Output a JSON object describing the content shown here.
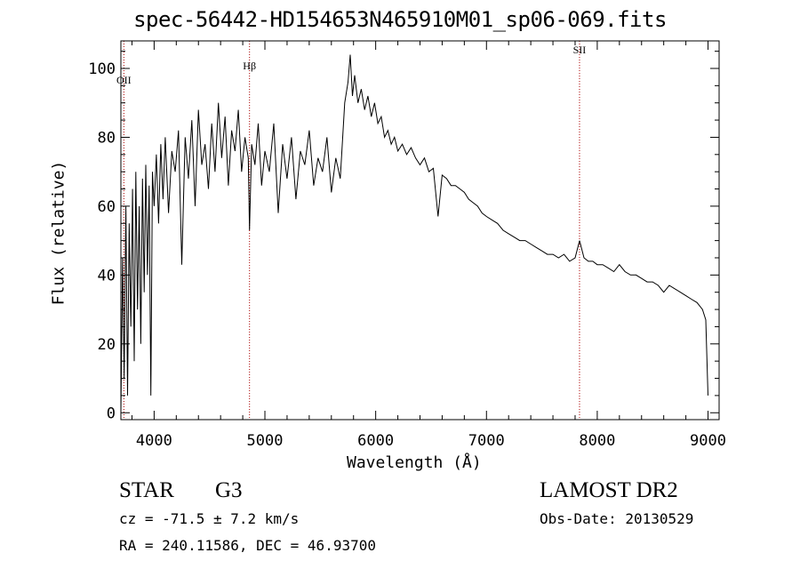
{
  "chart_data": {
    "type": "line",
    "title": "spec-56442-HD154653N465910M01_sp06-069.fits",
    "xlabel": "Wavelength (Å)",
    "ylabel": "Flux (relative)",
    "xlim": [
      3700,
      9100
    ],
    "ylim": [
      -2,
      108
    ],
    "x_ticks": [
      4000,
      5000,
      6000,
      7000,
      8000,
      9000
    ],
    "y_ticks": [
      0,
      20,
      40,
      60,
      80,
      100
    ],
    "x_ticklabels": [
      "4000",
      "5000",
      "6000",
      "7000",
      "8000",
      "9000"
    ],
    "y_ticklabels": [
      "0",
      "20",
      "40",
      "60",
      "80",
      "100"
    ],
    "grid": false,
    "line_markers": [
      {
        "label": "OII",
        "x": 3727,
        "color": "#aa0000"
      },
      {
        "label": "Hβ",
        "x": 4861,
        "color": "#aa0000"
      },
      {
        "label": "SII",
        "x": 7840,
        "color": "#aa0000"
      }
    ],
    "series": [
      {
        "x": [
          3700,
          3715,
          3730,
          3745,
          3760,
          3775,
          3790,
          3805,
          3820,
          3835,
          3850,
          3865,
          3880,
          3895,
          3910,
          3925,
          3940,
          3955,
          3970,
          3985,
          4000,
          4020,
          4040,
          4060,
          4080,
          4100,
          4130,
          4160,
          4190,
          4220,
          4250,
          4280,
          4310,
          4340,
          4370,
          4400,
          4430,
          4460,
          4490,
          4520,
          4550,
          4580,
          4610,
          4640,
          4670,
          4700,
          4730,
          4760,
          4790,
          4820,
          4850,
          4861,
          4880,
          4910,
          4940,
          4970,
          5000,
          5040,
          5080,
          5120,
          5160,
          5200,
          5240,
          5280,
          5320,
          5360,
          5400,
          5440,
          5480,
          5520,
          5560,
          5600,
          5640,
          5680,
          5720,
          5750,
          5770,
          5790,
          5810,
          5840,
          5870,
          5900,
          5930,
          5960,
          5990,
          6020,
          6050,
          6080,
          6110,
          6140,
          6170,
          6200,
          6240,
          6280,
          6320,
          6360,
          6400,
          6440,
          6480,
          6520,
          6563,
          6600,
          6640,
          6680,
          6720,
          6760,
          6800,
          6840,
          6880,
          6920,
          6960,
          7000,
          7050,
          7100,
          7150,
          7200,
          7250,
          7300,
          7350,
          7400,
          7450,
          7500,
          7550,
          7600,
          7650,
          7700,
          7750,
          7800,
          7840,
          7880,
          7920,
          7960,
          8000,
          8050,
          8100,
          8150,
          8200,
          8250,
          8300,
          8350,
          8400,
          8450,
          8500,
          8550,
          8600,
          8650,
          8700,
          8750,
          8800,
          8850,
          8900,
          8950,
          8980,
          9000
        ],
        "y": [
          0,
          45,
          10,
          60,
          5,
          55,
          25,
          65,
          15,
          70,
          30,
          60,
          20,
          68,
          35,
          72,
          40,
          66,
          5,
          70,
          60,
          75,
          55,
          78,
          62,
          80,
          58,
          76,
          70,
          82,
          43,
          80,
          68,
          85,
          60,
          88,
          72,
          78,
          65,
          84,
          70,
          90,
          74,
          86,
          66,
          82,
          76,
          88,
          70,
          80,
          74,
          53,
          78,
          72,
          84,
          66,
          76,
          70,
          84,
          58,
          78,
          68,
          80,
          62,
          76,
          72,
          82,
          66,
          74,
          70,
          80,
          64,
          74,
          68,
          90,
          96,
          104,
          92,
          98,
          90,
          94,
          88,
          92,
          86,
          90,
          84,
          86,
          80,
          82,
          78,
          80,
          76,
          78,
          75,
          77,
          74,
          72,
          74,
          70,
          71,
          57,
          69,
          68,
          66,
          66,
          65,
          64,
          62,
          61,
          60,
          58,
          57,
          56,
          55,
          53,
          52,
          51,
          50,
          50,
          49,
          48,
          47,
          46,
          46,
          45,
          46,
          44,
          45,
          50,
          45,
          44,
          44,
          43,
          43,
          42,
          41,
          43,
          41,
          40,
          40,
          39,
          38,
          38,
          37,
          35,
          37,
          36,
          35,
          34,
          33,
          32,
          30,
          27,
          5
        ]
      }
    ]
  },
  "info": {
    "object_class": "STAR",
    "subclass": "G3",
    "survey": "LAMOST DR2",
    "redshift": "cz = -71.5 ± 7.2 km/s",
    "obs_date": "Obs-Date: 20130529",
    "coords": "RA = 240.11586, DEC =  46.93700"
  }
}
